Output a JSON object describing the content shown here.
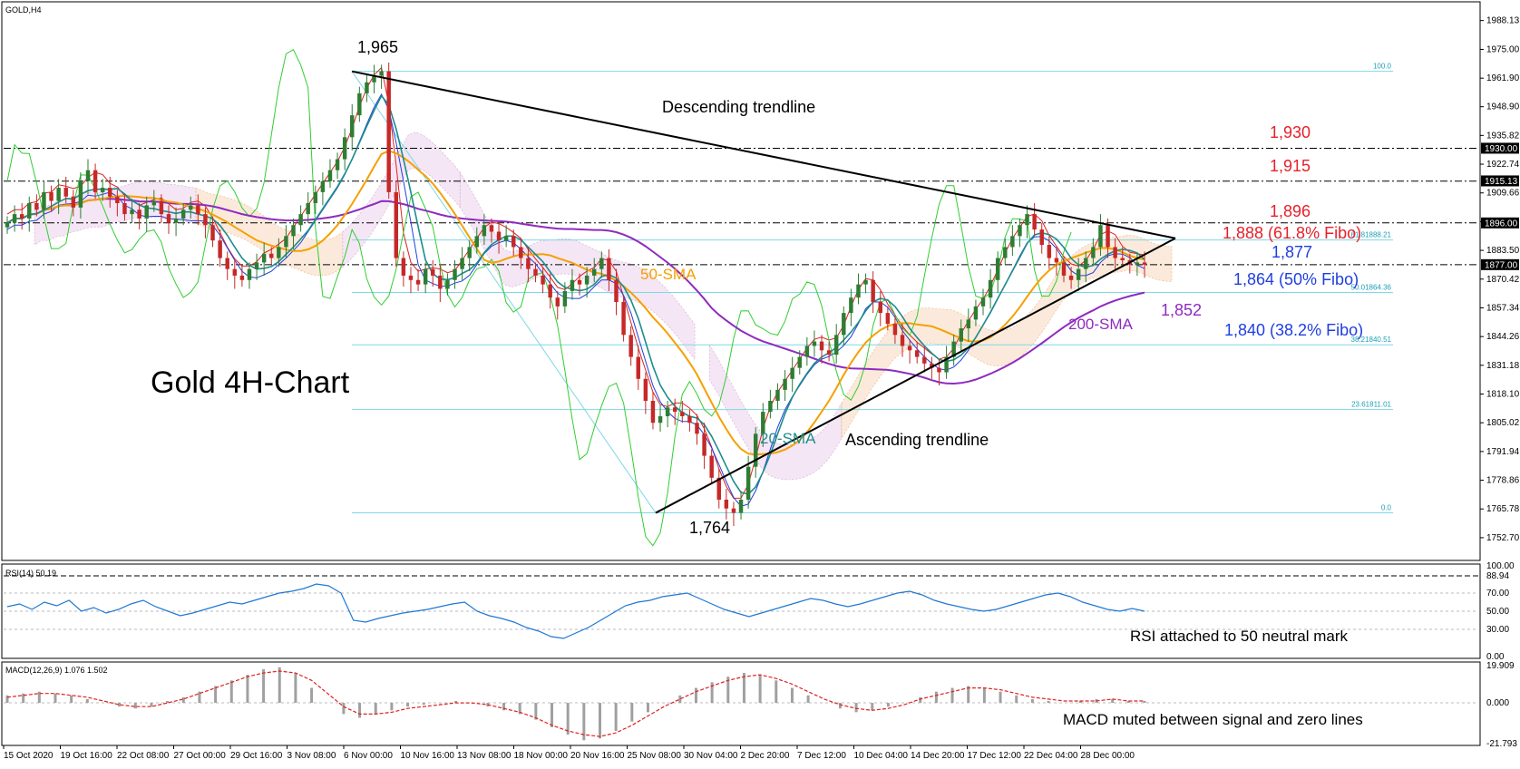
{
  "symbol_label": "GOLD,H4",
  "chart_title": "Gold 4H-Chart",
  "colors": {
    "price_up": "#2e7d32",
    "price_down": "#c62828",
    "sma20": "#1e8c8c",
    "sma50": "#f5a000",
    "sma200": "#8e2bbf",
    "ichimoku_span": "#32cd32",
    "bollinger_red": "#e02020",
    "bollinger_blue": "#1f3fe0",
    "fib": "#7fd7e6",
    "cloud_bull": "#f2b27c",
    "cloud_bear": "#d6a6d6",
    "rsi": "#1f78d4",
    "macd_hist": "#a0a0a0",
    "macd_signal": "#e02020",
    "label_red": "#e8202a",
    "label_blue": "#1f3fe0"
  },
  "chart_data": {
    "type": "line",
    "price_axis": {
      "ylim": [
        1744,
        1995
      ],
      "ticks": [
        1988.13,
        1975.0,
        1961.9,
        1948.9,
        1935.82,
        1922.74,
        1909.66,
        1896.58,
        1883.5,
        1870.42,
        1857.34,
        1844.26,
        1831.18,
        1818.1,
        1805.02,
        1791.94,
        1778.86,
        1765.78,
        1752.7
      ],
      "tick_labels": [
        "1988.13",
        "1975.00",
        "1961.90",
        "1948.90",
        "1935.82",
        "1922.74",
        "1909.66",
        "1896.58",
        "1883.50",
        "1870.42",
        "1857.34",
        "1844.26",
        "1831.18",
        "1818.10",
        "1805.02",
        "1791.94",
        "1778.86",
        "1765.78",
        "1752.70"
      ],
      "price_tags": [
        {
          "value": 1930.0,
          "label": "1930.00"
        },
        {
          "value": 1915.13,
          "label": "1915.13"
        },
        {
          "value": 1896.0,
          "label": "1896.00"
        },
        {
          "value": 1877.0,
          "label": "1877.00"
        }
      ]
    },
    "x_axis": {
      "labels": [
        "15 Oct 2020",
        "19 Oct 16:00",
        "22 Oct 08:00",
        "27 Oct 00:00",
        "29 Oct 16:00",
        "3 Nov 08:00",
        "6 Nov 00:00",
        "10 Nov 16:00",
        "13 Nov 08:00",
        "18 Nov 00:00",
        "20 Nov 16:00",
        "25 Nov 08:00",
        "30 Nov 04:00",
        "2 Dec 20:00",
        "7 Dec 12:00",
        "10 Dec 04:00",
        "14 Dec 20:00",
        "17 Dec 12:00",
        "22 Dec 04:00",
        "28 Dec 00:00"
      ]
    },
    "levels": [
      1930,
      1915,
      1896,
      1877
    ],
    "fibonacci": {
      "high": 1965,
      "low": 1764,
      "levels": [
        {
          "ratio": 100.0,
          "price": 1965,
          "label": "100.0"
        },
        {
          "ratio": 61.8,
          "price": 1888.21,
          "label": "61.81888.21"
        },
        {
          "ratio": 50.0,
          "price": 1864.36,
          "label": "50.01864.36"
        },
        {
          "ratio": 38.2,
          "price": 1840.51,
          "label": "38.21840.51"
        },
        {
          "ratio": 23.6,
          "price": 1811.01,
          "label": "23.61811.01"
        },
        {
          "ratio": 0.0,
          "price": 1764,
          "label": "0.0"
        }
      ]
    },
    "candles": [
      1896,
      1900,
      1898,
      1905,
      1902,
      1910,
      1906,
      1912,
      1908,
      1903,
      1915,
      1920,
      1910,
      1912,
      1908,
      1905,
      1900,
      1902,
      1898,
      1904,
      1906,
      1900,
      1896,
      1898,
      1902,
      1904,
      1900,
      1895,
      1888,
      1880,
      1875,
      1872,
      1870,
      1875,
      1878,
      1882,
      1880,
      1885,
      1890,
      1895,
      1900,
      1905,
      1910,
      1915,
      1920,
      1925,
      1935,
      1945,
      1955,
      1960,
      1963,
      1965,
      1910,
      1880,
      1872,
      1870,
      1868,
      1875,
      1872,
      1866,
      1870,
      1875,
      1880,
      1885,
      1890,
      1895,
      1892,
      1888,
      1890,
      1885,
      1880,
      1875,
      1872,
      1868,
      1862,
      1858,
      1865,
      1870,
      1868,
      1872,
      1875,
      1880,
      1870,
      1860,
      1845,
      1835,
      1825,
      1815,
      1805,
      1808,
      1812,
      1810,
      1808,
      1805,
      1800,
      1790,
      1780,
      1770,
      1766,
      1764,
      1770,
      1785,
      1800,
      1810,
      1815,
      1820,
      1825,
      1830,
      1835,
      1840,
      1842,
      1838,
      1836,
      1845,
      1855,
      1862,
      1868,
      1870,
      1860,
      1855,
      1850,
      1845,
      1840,
      1838,
      1835,
      1832,
      1830,
      1828,
      1835,
      1842,
      1848,
      1852,
      1858,
      1862,
      1870,
      1880,
      1885,
      1890,
      1895,
      1900,
      1893,
      1886,
      1880,
      1878,
      1872,
      1870,
      1875,
      1880,
      1885,
      1895,
      1885,
      1880,
      1879,
      1877,
      1878,
      1877
    ],
    "trendlines": [
      {
        "label": "Descending trendline",
        "from": 1965,
        "to": 1889
      },
      {
        "label": "Ascending trendline",
        "from": 1764,
        "to": 1889
      }
    ],
    "rsi": {
      "label": "RSI(14) 50.19",
      "ylim": [
        0,
        100
      ],
      "ticks": [
        100.0,
        88.94,
        70.0,
        50.0,
        30.0,
        0.0
      ],
      "tick_labels": [
        "100.00",
        "88.94",
        "70.00",
        "50.00",
        "30.00",
        "0.00"
      ],
      "values": [
        55,
        58,
        52,
        60,
        56,
        62,
        50,
        54,
        48,
        52,
        58,
        62,
        55,
        50,
        45,
        48,
        52,
        56,
        60,
        58,
        62,
        66,
        70,
        72,
        75,
        80,
        78,
        70,
        40,
        38,
        42,
        45,
        48,
        50,
        52,
        55,
        58,
        60,
        50,
        45,
        42,
        38,
        32,
        28,
        22,
        20,
        26,
        32,
        40,
        48,
        56,
        60,
        62,
        66,
        68,
        70,
        64,
        58,
        52,
        48,
        44,
        48,
        52,
        56,
        60,
        64,
        62,
        58,
        55,
        58,
        62,
        66,
        70,
        72,
        68,
        62,
        58,
        55,
        52,
        50,
        52,
        56,
        60,
        64,
        68,
        70,
        66,
        60,
        56,
        52,
        50,
        53,
        50
      ]
    },
    "macd": {
      "label": "MACD(12,26,9) 1.076 1.502",
      "ylim": [
        -21.793,
        19.909
      ],
      "ticks": [
        19.909,
        0.0,
        -21.793
      ],
      "tick_labels": [
        "19.909",
        "0.000",
        "-21.793"
      ],
      "histogram": [
        4,
        5,
        6,
        5,
        4,
        2,
        0,
        -2,
        -3,
        -2,
        1,
        3,
        6,
        9,
        12,
        15,
        18,
        19,
        16,
        8,
        0,
        -6,
        -8,
        -6,
        -4,
        -2,
        -1,
        0,
        1,
        0,
        -2,
        -4,
        -6,
        -9,
        -13,
        -17,
        -20,
        -19,
        -15,
        -10,
        -5,
        0,
        4,
        8,
        11,
        14,
        16,
        15,
        12,
        8,
        4,
        0,
        -3,
        -5,
        -4,
        -2,
        0,
        3,
        6,
        8,
        9,
        8,
        6,
        4,
        2,
        1,
        0,
        1,
        2,
        2,
        1,
        1
      ],
      "signal": [
        3,
        4,
        5,
        5,
        4,
        3,
        1,
        -1,
        -2,
        -2,
        0,
        2,
        5,
        8,
        11,
        14,
        16,
        17,
        16,
        12,
        5,
        -2,
        -6,
        -6,
        -5,
        -3,
        -2,
        -1,
        0,
        0,
        -1,
        -3,
        -5,
        -8,
        -12,
        -15,
        -17,
        -18,
        -16,
        -12,
        -7,
        -2,
        2,
        6,
        9,
        12,
        14,
        15,
        13,
        10,
        6,
        2,
        -1,
        -3,
        -4,
        -3,
        -1,
        2,
        4,
        6,
        8,
        8,
        7,
        5,
        3,
        2,
        1,
        1,
        1,
        2,
        1,
        1
      ]
    }
  },
  "annotations": {
    "high_label": "1,965",
    "low_label": "1,764",
    "descending": "Descending trendline",
    "ascending": "Ascending trendline",
    "lvl_1930": "1,930",
    "lvl_1915": "1,915",
    "lvl_1896": "1,896",
    "lvl_1888": "1,888  (61.8% Fibo)",
    "lvl_1877": "1,877",
    "lvl_1864": "1,864 (50% Fibo)",
    "lvl_1852": "1,852",
    "lvl_1840": "1,840 (38.2% Fibo)",
    "sma50": "50-SMA",
    "sma20": "20-SMA",
    "sma200": "200-SMA",
    "rsi_note": "RSI attached to 50 neutral mark",
    "macd_note": "MACD muted between signal and zero lines"
  }
}
